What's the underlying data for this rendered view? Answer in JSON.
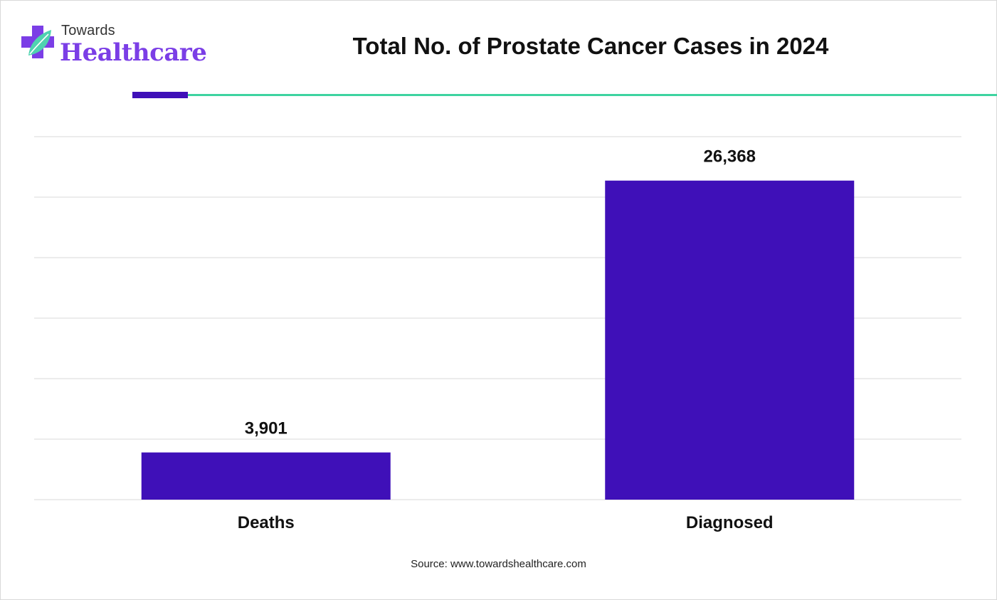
{
  "brand": {
    "name_top": "Towards",
    "name_bottom": "Healthcare",
    "accent_color": "#7b3ee6",
    "leaf_color": "#4fd3b0",
    "icon": "medical-cross-leaf-icon"
  },
  "colors": {
    "bar": "#3f10b8",
    "divider_accent": "#3f10b8",
    "divider_line": "#3ed3a0",
    "grid": "#d9d9d9"
  },
  "chart_data": {
    "type": "bar",
    "title": "Total No. of Prostate Cancer Cases in 2024",
    "xlabel": "",
    "ylabel": "",
    "categories": [
      "Deaths",
      "Diagnosed"
    ],
    "values": [
      3901,
      26368
    ],
    "value_labels": [
      "3,901",
      "26,368"
    ],
    "ylim": [
      0,
      30000
    ],
    "grid": true,
    "legend": "none"
  },
  "footer": {
    "source": "Source: www.towardshealthcare.com"
  }
}
